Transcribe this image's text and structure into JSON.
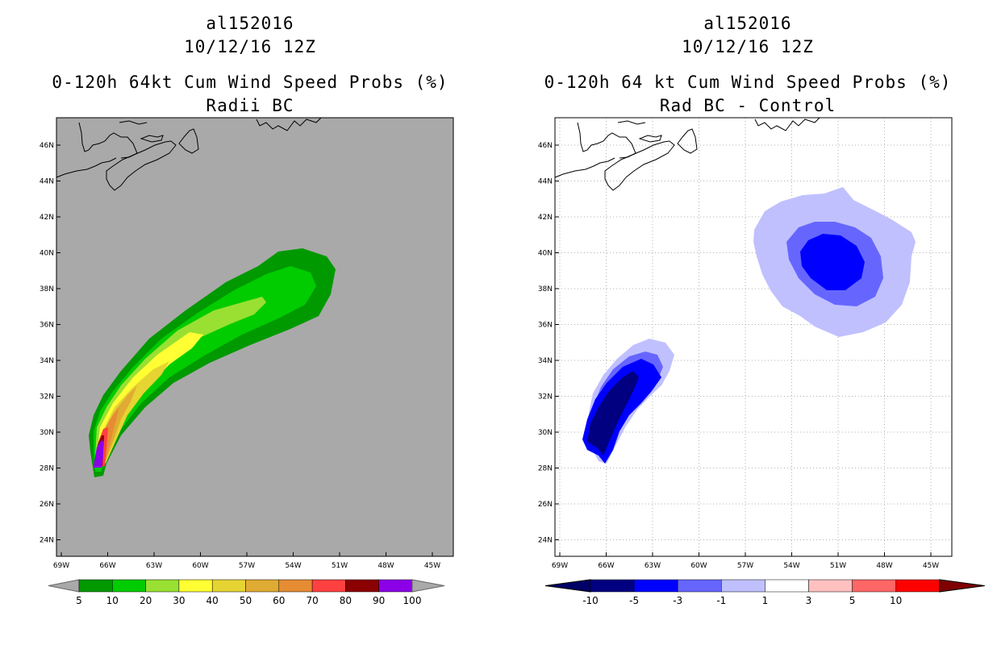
{
  "left_panel": {
    "storm_id": "al152016",
    "datetime": "10/12/16 12Z",
    "product": "0-120h 64kt Cum Wind Speed Probs (%)",
    "subtitle": "Radii BC",
    "background_color": "#a9a9a9",
    "lat_labels": [
      "46N",
      "44N",
      "42N",
      "40N",
      "38N",
      "36N",
      "34N",
      "32N",
      "30N",
      "28N",
      "26N",
      "24N"
    ],
    "lon_labels": [
      "69W",
      "66W",
      "63W",
      "60W",
      "57W",
      "54W",
      "51W",
      "48W",
      "45W"
    ],
    "colorbar": {
      "labels": [
        "5",
        "10",
        "20",
        "30",
        "40",
        "50",
        "60",
        "70",
        "80",
        "90",
        "100"
      ],
      "colors": [
        "#009900",
        "#00cc00",
        "#99e033",
        "#ffff33",
        "#e6d433",
        "#e0ab33",
        "#e68c33",
        "#ff4040",
        "#8b0000",
        "#8b00e6"
      ],
      "end_color": "#a9a9a9"
    }
  },
  "right_panel": {
    "storm_id": "al152016",
    "datetime": "10/12/16 12Z",
    "product": "0-120h 64 kt Cum Wind Speed Probs (%)",
    "subtitle": "Rad BC - Control",
    "lat_labels": [
      "46N",
      "44N",
      "42N",
      "40N",
      "38N",
      "36N",
      "34N",
      "32N",
      "30N",
      "28N",
      "26N",
      "24N"
    ],
    "lon_labels": [
      "69W",
      "66W",
      "63W",
      "60W",
      "57W",
      "54W",
      "51W",
      "48W",
      "45W"
    ],
    "colorbar": {
      "labels": [
        "-10",
        "-5",
        "-3",
        "-1",
        "1",
        "3",
        "5",
        "10"
      ],
      "colors": [
        "#000080",
        "#0000ff",
        "#6666ff",
        "#c0c0ff",
        "#ffffff",
        "#ffc0c0",
        "#ff6666",
        "#ff0000"
      ],
      "low_end_color": "#000066",
      "high_end_color": "#800000"
    }
  }
}
